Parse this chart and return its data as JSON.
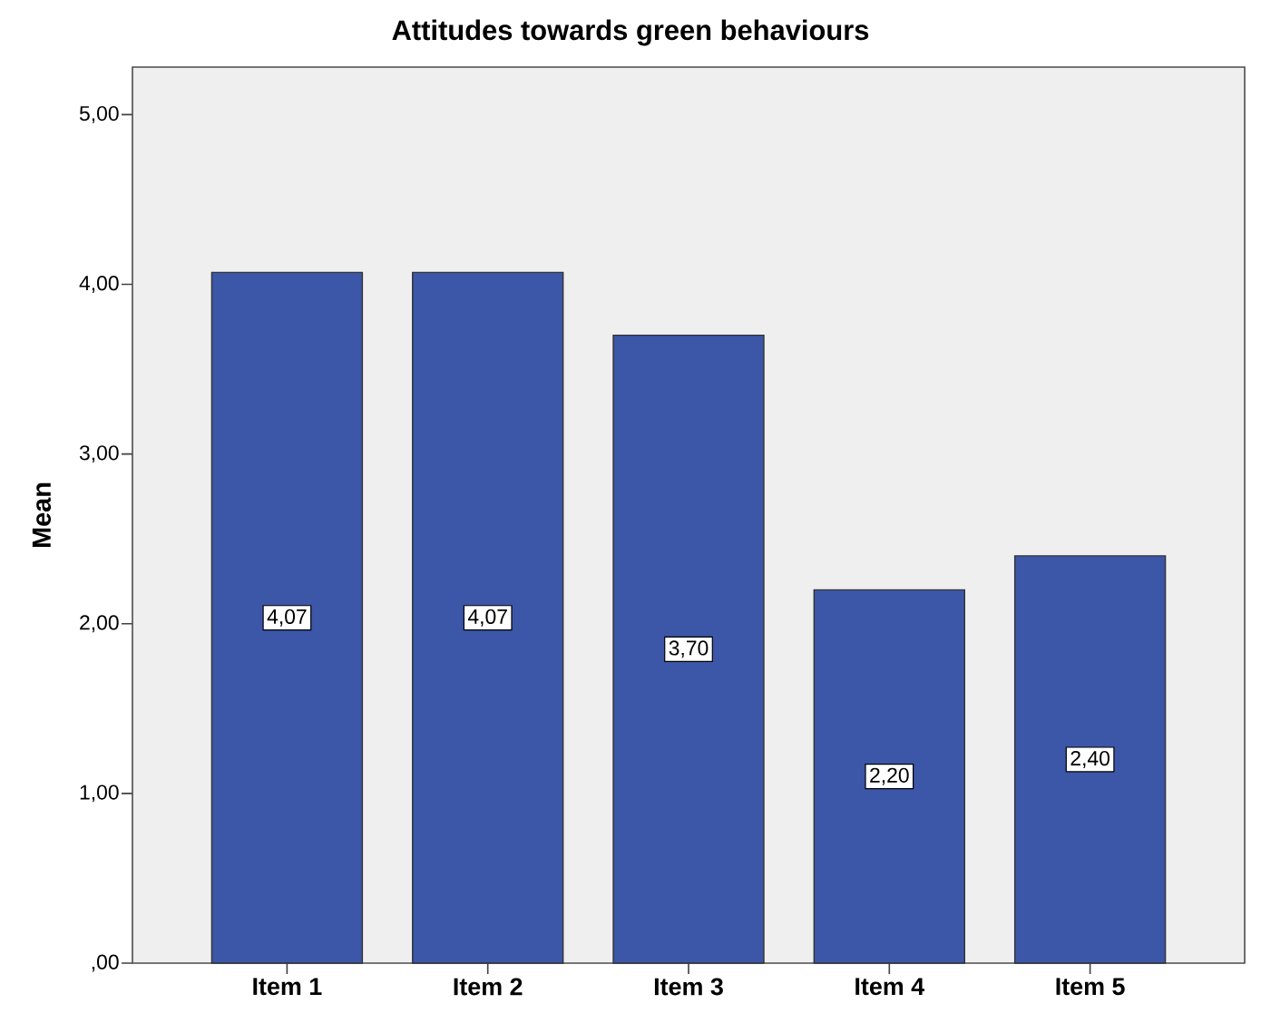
{
  "chart_data": {
    "type": "bar",
    "title": "Attitudes towards green behaviours",
    "ylabel": "Mean",
    "categories": [
      "Item 1",
      "Item 2",
      "Item 3",
      "Item 4",
      "Item 5"
    ],
    "values": [
      4.07,
      4.07,
      3.7,
      2.2,
      2.4
    ],
    "color": "#3c56a8",
    "value_labels": [
      "4,07",
      "4,07",
      "3,70",
      "2,20",
      "2,40"
    ],
    "ylim": [
      0,
      5.28
    ],
    "yticks": [
      {
        "value": 0,
        "label": ",00"
      },
      {
        "value": 1,
        "label": "1,00"
      },
      {
        "value": 2,
        "label": "2,00"
      },
      {
        "value": 3,
        "label": "3,00"
      },
      {
        "value": 4,
        "label": "4,00"
      },
      {
        "value": 5,
        "label": "5,00"
      }
    ]
  }
}
